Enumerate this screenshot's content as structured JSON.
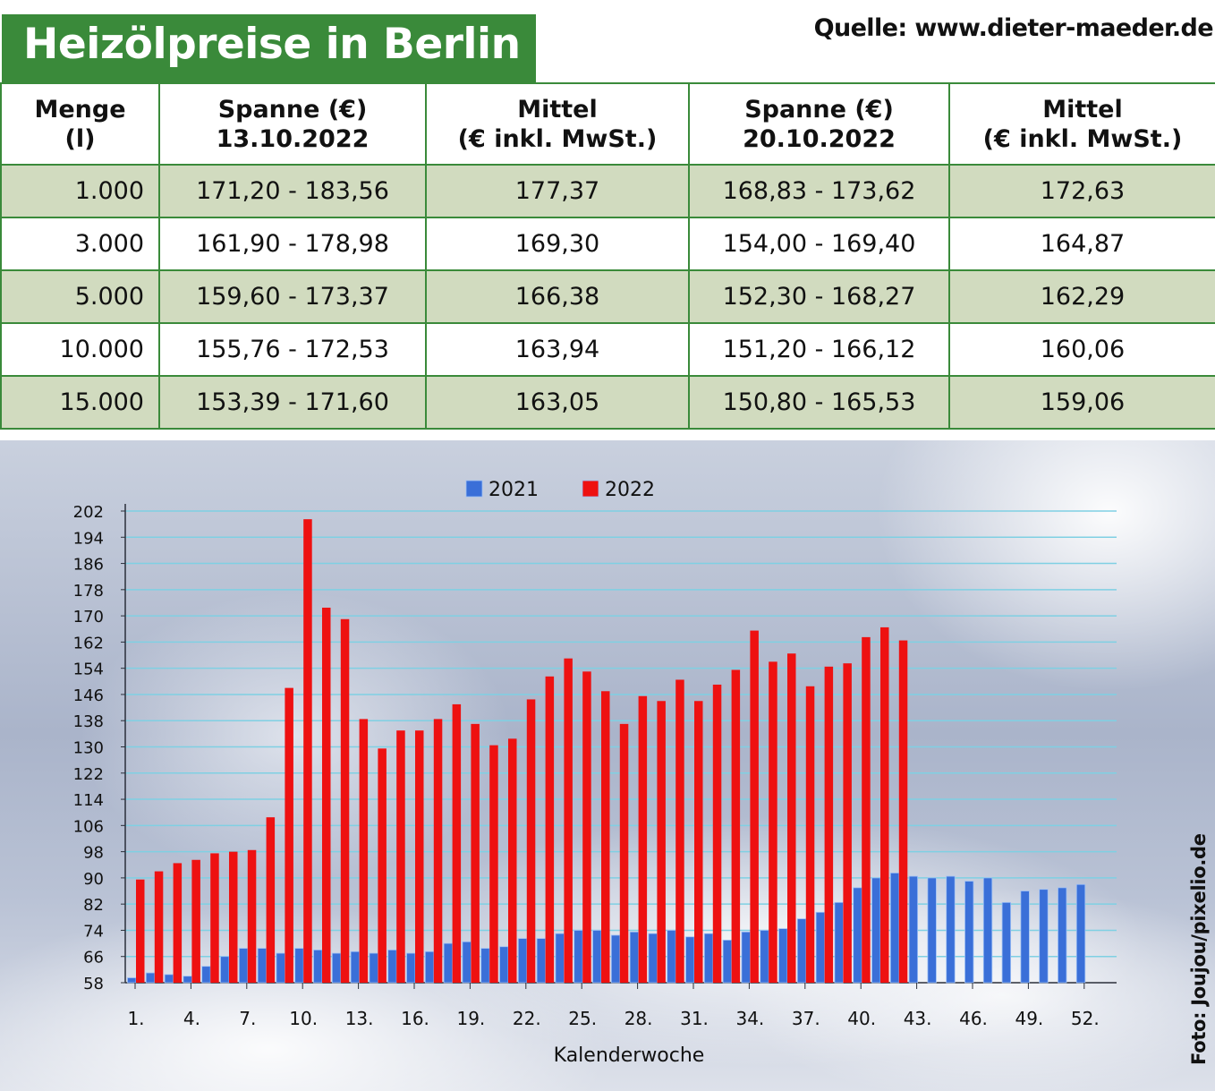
{
  "title": "Heizölpreise in Berlin",
  "source": "Quelle: www.dieter-maeder.de",
  "photo_credit": "Foto: Joujou/pixelio.de",
  "table": {
    "headers": [
      {
        "line1": "Menge",
        "line2": "(l)"
      },
      {
        "line1": "Spanne (€)",
        "line2": "13.10.2022"
      },
      {
        "line1": "Mittel",
        "line2": "(€ inkl. MwSt.)"
      },
      {
        "line1": "Spanne (€)",
        "line2": "20.10.2022"
      },
      {
        "line1": "Mittel",
        "line2": "(€ inkl. MwSt.)"
      }
    ],
    "rows": [
      [
        "1.000",
        "171,20 - 183,56",
        "177,37",
        "168,83 - 173,62",
        "172,63"
      ],
      [
        "3.000",
        "161,90 - 178,98",
        "169,30",
        "154,00 - 169,40",
        "164,87"
      ],
      [
        "5.000",
        "159,60 - 173,37",
        "166,38",
        "152,30 - 168,27",
        "162,29"
      ],
      [
        "10.000",
        "155,76 - 172,53",
        "163,94",
        "151,20 - 166,12",
        "160,06"
      ],
      [
        "15.000",
        "153,39 - 171,60",
        "163,05",
        "150,80 - 165,53",
        "159,06"
      ]
    ]
  },
  "chart_data": {
    "type": "bar",
    "xlabel": "Kalenderwoche",
    "ylabel": "",
    "ylim": [
      58,
      202
    ],
    "yticks": [
      58,
      66,
      74,
      82,
      90,
      98,
      106,
      114,
      122,
      130,
      138,
      146,
      154,
      162,
      170,
      178,
      186,
      194,
      202
    ],
    "xtick_labels": [
      "1.",
      "4.",
      "7.",
      "10.",
      "13.",
      "16.",
      "19.",
      "22.",
      "25.",
      "28.",
      "31.",
      "34.",
      "37.",
      "40.",
      "43.",
      "46.",
      "49.",
      "52."
    ],
    "categories": [
      1,
      2,
      3,
      4,
      5,
      6,
      7,
      8,
      9,
      10,
      11,
      12,
      13,
      14,
      15,
      16,
      17,
      18,
      19,
      20,
      21,
      22,
      23,
      24,
      25,
      26,
      27,
      28,
      29,
      30,
      31,
      32,
      33,
      34,
      35,
      36,
      37,
      38,
      39,
      40,
      41,
      42,
      43,
      44,
      45,
      46,
      47,
      48,
      49,
      50,
      51,
      52
    ],
    "legend_position": "top-center",
    "grid": true,
    "series": [
      {
        "name": "2021",
        "color": "#3a6fd8",
        "values": [
          59.5,
          61,
          60.5,
          60,
          63,
          66,
          68.5,
          68.5,
          67,
          68.5,
          68,
          67,
          67.5,
          67,
          68,
          67,
          67.5,
          70,
          70.5,
          68.5,
          69,
          71.5,
          71.5,
          73,
          74,
          74,
          72.5,
          73.5,
          73,
          74,
          72,
          73,
          71,
          73.5,
          74,
          74.5,
          77.5,
          79.5,
          82.5,
          87,
          90,
          91.5,
          90.5,
          90,
          90.5,
          89,
          90,
          82.5,
          86,
          86.5,
          87,
          88
        ]
      },
      {
        "name": "2022",
        "color": "#ee1111",
        "values": [
          89.5,
          92,
          94.5,
          95.5,
          97.5,
          98,
          98.5,
          108.5,
          148,
          199.5,
          172.5,
          169,
          138.5,
          129.5,
          135,
          135,
          138.5,
          143,
          137,
          130.5,
          132.5,
          144.5,
          151.5,
          157,
          153,
          147,
          137,
          145.5,
          144,
          150.5,
          144,
          149,
          153.5,
          165.5,
          156,
          158.5,
          148.5,
          154.5,
          155.5,
          163.5,
          166.5,
          162.5,
          null,
          null,
          null,
          null,
          null,
          null,
          null,
          null,
          null,
          null
        ]
      }
    ]
  }
}
